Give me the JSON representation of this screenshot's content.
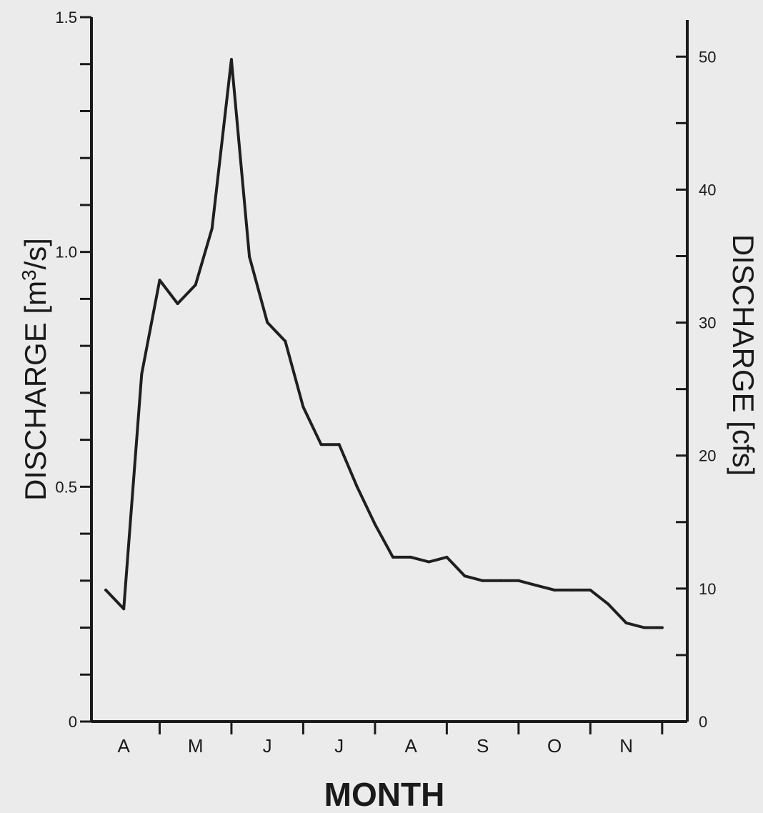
{
  "chart_data": {
    "type": "line",
    "title": "",
    "xlabel": "MONTH",
    "ylabel": "DISCHARGE [m³/s]",
    "ylabel_parts": {
      "pre": "DISCHARGE [m",
      "sup": "3",
      "post": "/s]"
    },
    "y2label": "DISCHARGE [cfs]",
    "ylim": [
      0,
      1.5
    ],
    "y2lim": [
      0,
      52.97
    ],
    "xlim": [
      3.3,
      11.6
    ],
    "grid": false,
    "months": [
      {
        "label": "A",
        "center": 3.75
      },
      {
        "label": "M",
        "center": 4.75
      },
      {
        "label": "J",
        "center": 5.75
      },
      {
        "label": "J",
        "center": 6.75
      },
      {
        "label": "A",
        "center": 7.75
      },
      {
        "label": "S",
        "center": 8.75
      },
      {
        "label": "O",
        "center": 9.75
      },
      {
        "label": "N",
        "center": 10.75
      }
    ],
    "month_boundaries": [
      4.25,
      5.25,
      6.25,
      7.25,
      8.25,
      9.25,
      10.25,
      11.25
    ],
    "y_ticks": [
      0,
      0.1,
      0.2,
      0.3,
      0.4,
      0.5,
      0.6,
      0.7,
      0.8,
      0.9,
      1.0,
      1.1,
      1.2,
      1.3,
      1.4,
      1.5
    ],
    "y_tick_labels": [
      {
        "value": 0,
        "label": "0"
      },
      {
        "value": 0.5,
        "label": "0.5"
      },
      {
        "value": 1.0,
        "label": "1.0"
      },
      {
        "value": 1.5,
        "label": "1.5"
      }
    ],
    "y2_ticks": [
      0,
      5,
      10,
      15,
      20,
      25,
      30,
      35,
      40,
      45,
      50
    ],
    "y2_tick_labels": [
      {
        "value": 0,
        "label": "0"
      },
      {
        "value": 10,
        "label": "10"
      },
      {
        "value": 20,
        "label": "20"
      },
      {
        "value": 30,
        "label": "30"
      },
      {
        "value": 40,
        "label": "40"
      },
      {
        "value": 50,
        "label": "50"
      }
    ],
    "series": [
      {
        "x": [
          3.5,
          3.75,
          4.0,
          4.25,
          4.5,
          4.75,
          4.98,
          5.25,
          5.5,
          5.75,
          6.0,
          6.25,
          6.5,
          6.75,
          7.0,
          7.25,
          7.5,
          7.75,
          8.0,
          8.25,
          8.5,
          8.75,
          9.0,
          9.25,
          9.5,
          9.75,
          10.0,
          10.25,
          10.5,
          10.75,
          11.0,
          11.25
        ],
        "y": [
          0.28,
          0.24,
          0.74,
          0.94,
          0.89,
          0.93,
          1.05,
          1.41,
          0.99,
          0.85,
          0.81,
          0.67,
          0.59,
          0.59,
          0.5,
          0.42,
          0.35,
          0.35,
          0.34,
          0.35,
          0.31,
          0.3,
          0.3,
          0.3,
          0.29,
          0.28,
          0.28,
          0.28,
          0.25,
          0.21,
          0.2,
          0.2
        ],
        "color": "#1f1f1f"
      }
    ]
  }
}
